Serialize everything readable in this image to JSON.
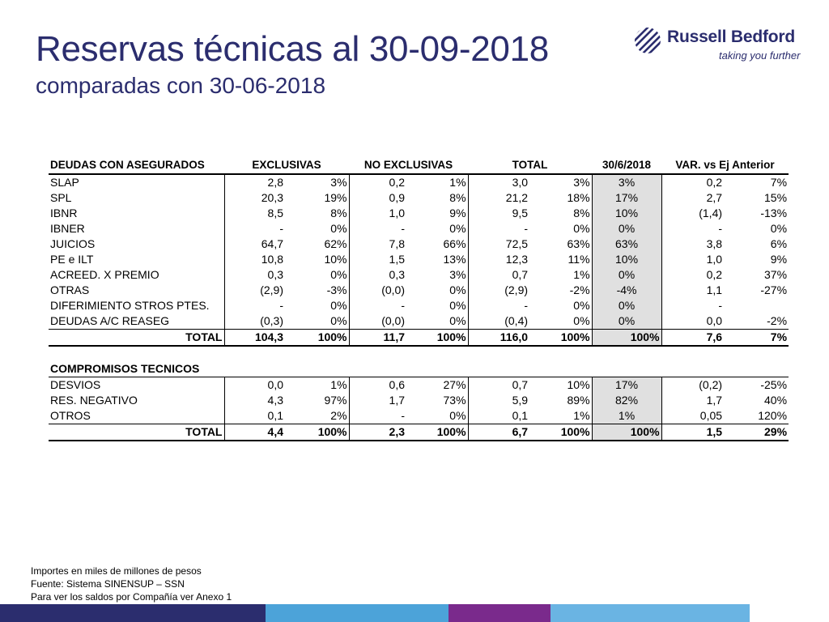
{
  "header": {
    "title": "Reservas técnicas al 30-09-2018",
    "subtitle": "comparadas con 30-06-2018",
    "logo_brand": "Russell Bedford",
    "logo_tagline": "taking you further"
  },
  "table": {
    "head": [
      "DEUDAS CON ASEGURADOS",
      "EXCLUSIVAS",
      "NO EXCLUSIVAS",
      "TOTAL",
      "30/6/2018",
      "VAR. vs Ej Anterior"
    ],
    "rows1": [
      [
        "SLAP",
        "2,8",
        "3%",
        "0,2",
        "1%",
        "3,0",
        "3%",
        "3%",
        "0,2",
        "7%"
      ],
      [
        "SPL",
        "20,3",
        "19%",
        "0,9",
        "8%",
        "21,2",
        "18%",
        "17%",
        "2,7",
        "15%"
      ],
      [
        "IBNR",
        "8,5",
        "8%",
        "1,0",
        "9%",
        "9,5",
        "8%",
        "10%",
        "(1,4)",
        "-13%"
      ],
      [
        "IBNER",
        "-",
        "0%",
        "-",
        "0%",
        "-",
        "0%",
        "0%",
        "-",
        "0%"
      ],
      [
        "JUICIOS",
        "64,7",
        "62%",
        "7,8",
        "66%",
        "72,5",
        "63%",
        "63%",
        "3,8",
        "6%"
      ],
      [
        "PE e ILT",
        "10,8",
        "10%",
        "1,5",
        "13%",
        "12,3",
        "11%",
        "10%",
        "1,0",
        "9%"
      ],
      [
        "ACREED. X PREMIO",
        "0,3",
        "0%",
        "0,3",
        "3%",
        "0,7",
        "1%",
        "0%",
        "0,2",
        "37%"
      ],
      [
        "OTRAS",
        "(2,9)",
        "-3%",
        "(0,0)",
        "0%",
        "(2,9)",
        "-2%",
        "-4%",
        "1,1",
        "-27%"
      ],
      [
        "DIFERIMIENTO STROS PTES.",
        "-",
        "0%",
        "-",
        "0%",
        "-",
        "0%",
        "0%",
        "-",
        ""
      ],
      [
        "DEUDAS A/C REASEG",
        "(0,3)",
        "0%",
        "(0,0)",
        "0%",
        "(0,4)",
        "0%",
        "0%",
        "0,0",
        "-2%"
      ]
    ],
    "total1": [
      "TOTAL",
      "104,3",
      "100%",
      "11,7",
      "100%",
      "116,0",
      "100%",
      "100%",
      "7,6",
      "7%"
    ],
    "section2": "COMPROMISOS TECNICOS",
    "rows2": [
      [
        "DESVIOS",
        "0,0",
        "1%",
        "0,6",
        "27%",
        "0,7",
        "10%",
        "17%",
        "(0,2)",
        "-25%"
      ],
      [
        "RES. NEGATIVO",
        "4,3",
        "97%",
        "1,7",
        "73%",
        "5,9",
        "89%",
        "82%",
        "1,7",
        "40%"
      ],
      [
        "OTROS",
        "0,1",
        "2%",
        "-",
        "0%",
        "0,1",
        "1%",
        "1%",
        "0,05",
        "120%"
      ]
    ],
    "total2": [
      "TOTAL",
      "4,4",
      "100%",
      "2,3",
      "100%",
      "6,7",
      "100%",
      "100%",
      "1,5",
      "29%"
    ]
  },
  "notes": [
    "Importes en miles de millones de pesos",
    "Fuente: Sistema SINENSUP – SSN",
    "Para ver los saldos por Compañía ver Anexo 1"
  ],
  "colors": {
    "brand": "#2b2d6e",
    "shade": "#e0e0e0",
    "bar": [
      "#2b2d6e",
      "#4ca3d9",
      "#7a2a8c",
      "#6ab4e3",
      "#ffffff"
    ]
  }
}
